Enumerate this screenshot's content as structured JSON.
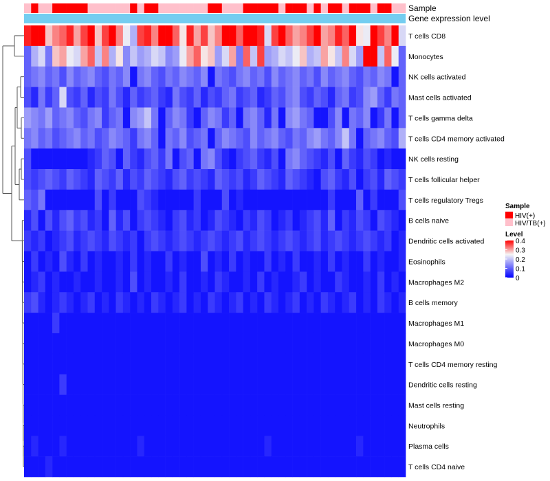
{
  "chart_data": {
    "type": "heatmap",
    "annotation_labels": {
      "sample": "Sample",
      "gene_expression": "Gene expression level"
    },
    "row_labels": [
      "T cells CD8",
      "Monocytes",
      "NK cells activated",
      "Mast cells activated",
      "T cells gamma delta",
      "T cells CD4 memory activated",
      "NK cells resting",
      "T cells follicular helper",
      "T cells regulatory  Tregs",
      "B cells naive",
      "Dendritic cells activated",
      "Eosinophils",
      "Macrophages M2",
      "B cells memory",
      "Macrophages M1",
      "Macrophages M0",
      "T cells CD4 memory resting",
      "Dendritic cells resting",
      "Mast cells resting",
      "Neutrophils",
      "Plasma cells",
      "T cells CD4 naive"
    ],
    "sample_groups": [
      "HIV/TB(+)",
      "HIV(+)",
      "HIV/TB(+)",
      "HIV/TB(+)",
      "HIV(+)",
      "HIV(+)",
      "HIV(+)",
      "HIV(+)",
      "HIV(+)",
      "HIV/TB(+)",
      "HIV/TB(+)",
      "HIV/TB(+)",
      "HIV/TB(+)",
      "HIV/TB(+)",
      "HIV/TB(+)",
      "HIV(+)",
      "HIV/TB(+)",
      "HIV(+)",
      "HIV(+)",
      "HIV/TB(+)",
      "HIV/TB(+)",
      "HIV/TB(+)",
      "HIV/TB(+)",
      "HIV/TB(+)",
      "HIV/TB(+)",
      "HIV/TB(+)",
      "HIV(+)",
      "HIV(+)",
      "HIV/TB(+)",
      "HIV/TB(+)",
      "HIV/TB(+)",
      "HIV(+)",
      "HIV(+)",
      "HIV(+)",
      "HIV(+)",
      "HIV(+)",
      "HIV/TB(+)",
      "HIV(+)",
      "HIV(+)",
      "HIV(+)",
      "HIV/TB(+)",
      "HIV(+)",
      "HIV/TB(+)",
      "HIV(+)",
      "HIV(+)",
      "HIV/TB(+)",
      "HIV(+)",
      "HIV(+)",
      "HIV(+)",
      "HIV/TB(+)",
      "HIV(+)",
      "HIV(+)",
      "HIV/TB(+)",
      "HIV/TB(+)"
    ],
    "values": [
      [
        0.38,
        0.4,
        0.42,
        0.28,
        0.32,
        0.34,
        0.38,
        0.3,
        0.36,
        0.4,
        0.28,
        0.36,
        0.4,
        0.32,
        0.24,
        0.18,
        0.36,
        0.38,
        0.32,
        0.4,
        0.42,
        0.34,
        0.26,
        0.38,
        0.3,
        0.36,
        0.28,
        0.32,
        0.42,
        0.44,
        0.34,
        0.42,
        0.4,
        0.38,
        0.22,
        0.36,
        0.4,
        0.34,
        0.3,
        0.32,
        0.36,
        0.4,
        0.3,
        0.32,
        0.38,
        0.34,
        0.4,
        0.26,
        0.24,
        0.4,
        0.36,
        0.32,
        0.42,
        0.22
      ],
      [
        0.1,
        0.18,
        0.22,
        0.12,
        0.28,
        0.3,
        0.24,
        0.22,
        0.3,
        0.34,
        0.2,
        0.32,
        0.18,
        0.26,
        0.14,
        0.2,
        0.16,
        0.18,
        0.22,
        0.2,
        0.14,
        0.16,
        0.24,
        0.3,
        0.34,
        0.26,
        0.28,
        0.16,
        0.22,
        0.3,
        0.12,
        0.34,
        0.2,
        0.36,
        0.16,
        0.18,
        0.22,
        0.2,
        0.24,
        0.28,
        0.18,
        0.2,
        0.3,
        0.26,
        0.2,
        0.32,
        0.22,
        0.16,
        0.44,
        0.42,
        0.2,
        0.34,
        0.24,
        0.1
      ],
      [
        0.1,
        0.12,
        0.14,
        0.1,
        0.12,
        0.08,
        0.14,
        0.1,
        0.12,
        0.14,
        0.1,
        0.08,
        0.12,
        0.1,
        0.14,
        0.02,
        0.12,
        0.14,
        0.1,
        0.08,
        0.12,
        0.1,
        0.14,
        0.12,
        0.1,
        0.14,
        0.02,
        0.12,
        0.1,
        0.08,
        0.12,
        0.14,
        0.1,
        0.12,
        0.08,
        0.14,
        0.1,
        0.12,
        0.14,
        0.1,
        0.12,
        0.08,
        0.14,
        0.1,
        0.12,
        0.14,
        0.1,
        0.08,
        0.12,
        0.1,
        0.14,
        0.12,
        0.02,
        0.1
      ],
      [
        0.08,
        0.04,
        0.12,
        0.06,
        0.1,
        0.22,
        0.08,
        0.06,
        0.1,
        0.04,
        0.08,
        0.06,
        0.12,
        0.08,
        0.04,
        0.1,
        0.06,
        0.08,
        0.1,
        0.06,
        0.04,
        0.12,
        0.08,
        0.06,
        0.1,
        0.04,
        0.08,
        0.06,
        0.1,
        0.12,
        0.06,
        0.08,
        0.1,
        0.04,
        0.06,
        0.1,
        0.08,
        0.12,
        0.14,
        0.08,
        0.06,
        0.1,
        0.08,
        0.04,
        0.1,
        0.12,
        0.06,
        0.08,
        0.14,
        0.16,
        0.1,
        0.06,
        0.12,
        0.1
      ],
      [
        0.16,
        0.14,
        0.12,
        0.16,
        0.1,
        0.12,
        0.14,
        0.1,
        0.08,
        0.12,
        0.14,
        0.06,
        0.1,
        0.12,
        0.02,
        0.14,
        0.16,
        0.2,
        0.12,
        0.02,
        0.1,
        0.14,
        0.12,
        0.06,
        0.02,
        0.1,
        0.14,
        0.12,
        0.06,
        0.1,
        0.02,
        0.12,
        0.14,
        0.1,
        0.04,
        0.12,
        0.02,
        0.14,
        0.16,
        0.12,
        0.1,
        0.02,
        0.02,
        0.08,
        0.14,
        0.02,
        0.12,
        0.1,
        0.14,
        0.02,
        0.06,
        0.12,
        0.02,
        0.1
      ],
      [
        0.12,
        0.14,
        0.1,
        0.12,
        0.08,
        0.1,
        0.12,
        0.14,
        0.1,
        0.12,
        0.08,
        0.1,
        0.14,
        0.12,
        0.1,
        0.06,
        0.12,
        0.14,
        0.1,
        0.02,
        0.12,
        0.1,
        0.14,
        0.08,
        0.1,
        0.12,
        0.02,
        0.1,
        0.14,
        0.12,
        0.1,
        0.08,
        0.14,
        0.1,
        0.12,
        0.14,
        0.1,
        0.08,
        0.12,
        0.1,
        0.14,
        0.16,
        0.12,
        0.1,
        0.14,
        0.2,
        0.12,
        0.02,
        0.1,
        0.12,
        0.14,
        0.1,
        0.08,
        0.18
      ],
      [
        0.08,
        0.02,
        0.02,
        0.02,
        0.02,
        0.02,
        0.02,
        0.02,
        0.02,
        0.04,
        0.06,
        0.1,
        0.08,
        0.02,
        0.1,
        0.06,
        0.04,
        0.08,
        0.1,
        0.06,
        0.12,
        0.02,
        0.08,
        0.1,
        0.02,
        0.12,
        0.14,
        0.08,
        0.04,
        0.02,
        0.06,
        0.08,
        0.1,
        0.06,
        0.04,
        0.08,
        0.02,
        0.12,
        0.14,
        0.1,
        0.08,
        0.06,
        0.04,
        0.08,
        0.02,
        0.1,
        0.06,
        0.04,
        0.08,
        0.06,
        0.02,
        0.04,
        0.02,
        0.02
      ],
      [
        0.08,
        0.06,
        0.08,
        0.1,
        0.08,
        0.06,
        0.1,
        0.08,
        0.06,
        0.04,
        0.1,
        0.08,
        0.06,
        0.1,
        0.04,
        0.08,
        0.06,
        0.1,
        0.08,
        0.06,
        0.04,
        0.08,
        0.1,
        0.06,
        0.08,
        0.06,
        0.04,
        0.1,
        0.08,
        0.06,
        0.08,
        0.04,
        0.06,
        0.1,
        0.08,
        0.06,
        0.04,
        0.1,
        0.08,
        0.06,
        0.04,
        0.02,
        0.08,
        0.1,
        0.06,
        0.04,
        0.08,
        0.02,
        0.06,
        0.08,
        0.04,
        0.1,
        0.08,
        0.06
      ],
      [
        0.1,
        0.08,
        0.12,
        0.02,
        0.02,
        0.02,
        0.02,
        0.02,
        0.02,
        0.02,
        0.08,
        0.02,
        0.06,
        0.02,
        0.02,
        0.02,
        0.08,
        0.06,
        0.04,
        0.02,
        0.02,
        0.02,
        0.02,
        0.02,
        0.06,
        0.02,
        0.02,
        0.02,
        0.08,
        0.02,
        0.04,
        0.02,
        0.02,
        0.02,
        0.02,
        0.02,
        0.02,
        0.02,
        0.02,
        0.02,
        0.02,
        0.02,
        0.02,
        0.06,
        0.02,
        0.02,
        0.02,
        0.1,
        0.02,
        0.06,
        0.02,
        0.02,
        0.02,
        0.08
      ],
      [
        0.04,
        0.08,
        0.02,
        0.08,
        0.04,
        0.08,
        0.1,
        0.06,
        0.08,
        0.04,
        0.06,
        0.02,
        0.1,
        0.04,
        0.08,
        0.02,
        0.06,
        0.08,
        0.06,
        0.04,
        0.02,
        0.06,
        0.08,
        0.04,
        0.06,
        0.02,
        0.04,
        0.08,
        0.06,
        0.04,
        0.02,
        0.06,
        0.04,
        0.08,
        0.06,
        0.02,
        0.04,
        0.06,
        0.02,
        0.04,
        0.06,
        0.08,
        0.04,
        0.1,
        0.02,
        0.06,
        0.04,
        0.08,
        0.06,
        0.02,
        0.08,
        0.06,
        0.04,
        0.02
      ],
      [
        0.06,
        0.04,
        0.06,
        0.02,
        0.04,
        0.06,
        0.08,
        0.04,
        0.06,
        0.08,
        0.06,
        0.04,
        0.08,
        0.06,
        0.04,
        0.06,
        0.02,
        0.06,
        0.08,
        0.06,
        0.04,
        0.06,
        0.08,
        0.06,
        0.04,
        0.06,
        0.08,
        0.06,
        0.04,
        0.06,
        0.08,
        0.04,
        0.06,
        0.08,
        0.06,
        0.04,
        0.06,
        0.08,
        0.06,
        0.04,
        0.06,
        0.08,
        0.04,
        0.06,
        0.08,
        0.06,
        0.04,
        0.06,
        0.08,
        0.06,
        0.04,
        0.06,
        0.02,
        0.04
      ],
      [
        0.02,
        0.06,
        0.02,
        0.04,
        0.02,
        0.08,
        0.04,
        0.02,
        0.06,
        0.02,
        0.04,
        0.02,
        0.02,
        0.04,
        0.02,
        0.06,
        0.02,
        0.04,
        0.02,
        0.02,
        0.06,
        0.02,
        0.04,
        0.02,
        0.02,
        0.08,
        0.02,
        0.04,
        0.02,
        0.06,
        0.02,
        0.04,
        0.02,
        0.02,
        0.06,
        0.02,
        0.04,
        0.02,
        0.06,
        0.02,
        0.02,
        0.04,
        0.02,
        0.06,
        0.02,
        0.04,
        0.02,
        0.02,
        0.06,
        0.02,
        0.04,
        0.02,
        0.02,
        0.04
      ],
      [
        0.02,
        0.04,
        0.06,
        0.02,
        0.04,
        0.02,
        0.02,
        0.04,
        0.02,
        0.02,
        0.04,
        0.02,
        0.02,
        0.04,
        0.02,
        0.08,
        0.02,
        0.04,
        0.02,
        0.02,
        0.04,
        0.02,
        0.06,
        0.02,
        0.02,
        0.04,
        0.02,
        0.06,
        0.04,
        0.02,
        0.02,
        0.04,
        0.02,
        0.06,
        0.02,
        0.04,
        0.02,
        0.02,
        0.04,
        0.06,
        0.02,
        0.04,
        0.02,
        0.02,
        0.06,
        0.04,
        0.02,
        0.02,
        0.04,
        0.02,
        0.06,
        0.02,
        0.04,
        0.02
      ],
      [
        0.06,
        0.08,
        0.04,
        0.02,
        0.04,
        0.06,
        0.04,
        0.02,
        0.04,
        0.06,
        0.02,
        0.04,
        0.02,
        0.06,
        0.04,
        0.02,
        0.04,
        0.02,
        0.06,
        0.04,
        0.02,
        0.04,
        0.06,
        0.02,
        0.04,
        0.02,
        0.06,
        0.04,
        0.02,
        0.04,
        0.06,
        0.02,
        0.04,
        0.02,
        0.06,
        0.04,
        0.02,
        0.04,
        0.06,
        0.02,
        0.04,
        0.02,
        0.06,
        0.04,
        0.02,
        0.04,
        0.06,
        0.02,
        0.04,
        0.02,
        0.06,
        0.04,
        0.02,
        0.04
      ],
      [
        0.02,
        0.02,
        0.02,
        0.02,
        0.06,
        0.02,
        0.02,
        0.02,
        0.02,
        0.02,
        0.02,
        0.02,
        0.02,
        0.02,
        0.02,
        0.02,
        0.02,
        0.02,
        0.02,
        0.02,
        0.02,
        0.02,
        0.02,
        0.02,
        0.02,
        0.02,
        0.02,
        0.02,
        0.02,
        0.02,
        0.02,
        0.02,
        0.02,
        0.02,
        0.02,
        0.02,
        0.02,
        0.02,
        0.02,
        0.02,
        0.02,
        0.02,
        0.02,
        0.02,
        0.02,
        0.02,
        0.02,
        0.02,
        0.02,
        0.02,
        0.02,
        0.02,
        0.02,
        0.02
      ],
      [
        0.02,
        0.02,
        0.02,
        0.02,
        0.02,
        0.02,
        0.02,
        0.02,
        0.02,
        0.02,
        0.02,
        0.02,
        0.02,
        0.02,
        0.02,
        0.02,
        0.02,
        0.02,
        0.02,
        0.02,
        0.02,
        0.02,
        0.02,
        0.02,
        0.02,
        0.02,
        0.02,
        0.02,
        0.02,
        0.02,
        0.02,
        0.02,
        0.02,
        0.02,
        0.02,
        0.02,
        0.02,
        0.02,
        0.02,
        0.02,
        0.02,
        0.02,
        0.02,
        0.02,
        0.02,
        0.02,
        0.02,
        0.02,
        0.02,
        0.02,
        0.02,
        0.02,
        0.02,
        0.02
      ],
      [
        0.02,
        0.02,
        0.02,
        0.02,
        0.02,
        0.02,
        0.02,
        0.02,
        0.02,
        0.02,
        0.02,
        0.02,
        0.02,
        0.02,
        0.02,
        0.02,
        0.02,
        0.02,
        0.02,
        0.02,
        0.02,
        0.02,
        0.02,
        0.02,
        0.02,
        0.02,
        0.02,
        0.02,
        0.02,
        0.02,
        0.02,
        0.02,
        0.02,
        0.02,
        0.02,
        0.02,
        0.02,
        0.02,
        0.02,
        0.02,
        0.02,
        0.02,
        0.02,
        0.02,
        0.02,
        0.02,
        0.02,
        0.02,
        0.02,
        0.02,
        0.02,
        0.02,
        0.02,
        0.02
      ],
      [
        0.02,
        0.02,
        0.02,
        0.02,
        0.02,
        0.06,
        0.02,
        0.02,
        0.02,
        0.02,
        0.02,
        0.02,
        0.02,
        0.02,
        0.02,
        0.02,
        0.02,
        0.02,
        0.02,
        0.02,
        0.02,
        0.02,
        0.02,
        0.02,
        0.02,
        0.02,
        0.02,
        0.02,
        0.02,
        0.02,
        0.02,
        0.02,
        0.02,
        0.02,
        0.02,
        0.02,
        0.02,
        0.02,
        0.02,
        0.02,
        0.02,
        0.02,
        0.02,
        0.02,
        0.02,
        0.02,
        0.02,
        0.02,
        0.02,
        0.02,
        0.02,
        0.02,
        0.02,
        0.02
      ],
      [
        0.02,
        0.02,
        0.02,
        0.02,
        0.02,
        0.02,
        0.02,
        0.02,
        0.02,
        0.02,
        0.02,
        0.02,
        0.02,
        0.02,
        0.02,
        0.02,
        0.02,
        0.02,
        0.02,
        0.02,
        0.02,
        0.02,
        0.02,
        0.02,
        0.02,
        0.02,
        0.02,
        0.02,
        0.02,
        0.02,
        0.02,
        0.02,
        0.02,
        0.02,
        0.02,
        0.02,
        0.02,
        0.02,
        0.02,
        0.02,
        0.02,
        0.02,
        0.02,
        0.02,
        0.02,
        0.02,
        0.02,
        0.02,
        0.02,
        0.02,
        0.02,
        0.02,
        0.02,
        0.02
      ],
      [
        0.02,
        0.02,
        0.02,
        0.02,
        0.02,
        0.02,
        0.02,
        0.02,
        0.02,
        0.02,
        0.02,
        0.02,
        0.02,
        0.02,
        0.02,
        0.02,
        0.02,
        0.02,
        0.02,
        0.02,
        0.02,
        0.02,
        0.02,
        0.02,
        0.02,
        0.02,
        0.02,
        0.02,
        0.02,
        0.02,
        0.02,
        0.02,
        0.02,
        0.02,
        0.02,
        0.02,
        0.02,
        0.02,
        0.02,
        0.02,
        0.02,
        0.02,
        0.02,
        0.02,
        0.02,
        0.02,
        0.02,
        0.02,
        0.02,
        0.02,
        0.02,
        0.02,
        0.02,
        0.02
      ],
      [
        0.02,
        0.04,
        0.02,
        0.02,
        0.02,
        0.04,
        0.02,
        0.02,
        0.02,
        0.02,
        0.02,
        0.02,
        0.02,
        0.02,
        0.02,
        0.02,
        0.04,
        0.02,
        0.02,
        0.02,
        0.02,
        0.02,
        0.02,
        0.02,
        0.02,
        0.02,
        0.02,
        0.02,
        0.02,
        0.02,
        0.02,
        0.02,
        0.02,
        0.02,
        0.04,
        0.02,
        0.02,
        0.02,
        0.02,
        0.02,
        0.02,
        0.02,
        0.02,
        0.02,
        0.02,
        0.02,
        0.02,
        0.04,
        0.02,
        0.02,
        0.02,
        0.02,
        0.02,
        0.02
      ],
      [
        0.02,
        0.02,
        0.02,
        0.04,
        0.02,
        0.02,
        0.02,
        0.02,
        0.02,
        0.02,
        0.02,
        0.02,
        0.02,
        0.02,
        0.02,
        0.02,
        0.02,
        0.02,
        0.02,
        0.02,
        0.02,
        0.02,
        0.02,
        0.02,
        0.02,
        0.02,
        0.02,
        0.02,
        0.02,
        0.02,
        0.02,
        0.02,
        0.02,
        0.02,
        0.02,
        0.02,
        0.02,
        0.02,
        0.02,
        0.02,
        0.02,
        0.02,
        0.02,
        0.02,
        0.02,
        0.02,
        0.02,
        0.02,
        0.02,
        0.02,
        0.02,
        0.02,
        0.02,
        0.02
      ]
    ],
    "color_scale": {
      "min": 0,
      "max": 0.4,
      "low_color": "#0000ff",
      "mid_color": "#f5f5f5",
      "high_color": "#ff0000",
      "mid_value": 0.25
    },
    "annotation_colors": {
      "HIV(+)": "#ff0000",
      "HIV/TB(+)": "#ffc0cb",
      "gene_expression_bar": "#74cdf0"
    },
    "legend": {
      "sample_title": "Sample",
      "sample_entries": [
        "HIV(+)",
        "HIV/TB(+)"
      ],
      "level_title": "Level",
      "level_ticks": [
        0.4,
        0.3,
        0.2,
        0.1,
        0
      ],
      "placement": "right"
    },
    "dendrogram": "rows",
    "dendrogram_color": "#555555"
  }
}
